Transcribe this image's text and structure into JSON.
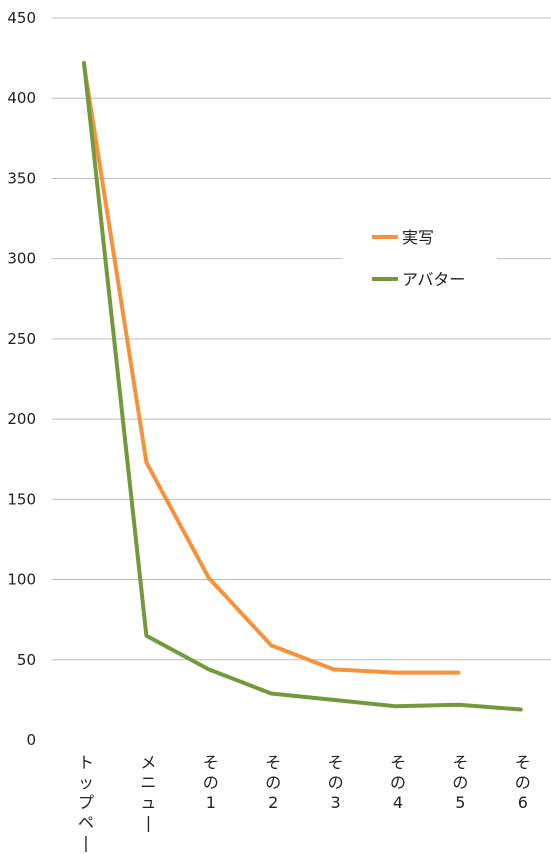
{
  "chart_data": {
    "type": "line",
    "categories": [
      "トップページ",
      "メニュー",
      "その1",
      "その2",
      "その3",
      "その4",
      "その5",
      "その6"
    ],
    "ylim": [
      0,
      450
    ],
    "yticks": [
      0,
      50,
      100,
      150,
      200,
      250,
      300,
      350,
      400,
      450
    ],
    "grid": true,
    "legend_position": "right",
    "series": [
      {
        "name": "実写",
        "color": "#f7923b",
        "values": [
          421,
          173,
          101,
          59,
          44,
          42,
          42,
          null
        ]
      },
      {
        "name": "アバター",
        "color": "#73993c",
        "values": [
          422,
          65,
          44,
          29,
          25,
          21,
          22,
          19
        ]
      }
    ]
  }
}
